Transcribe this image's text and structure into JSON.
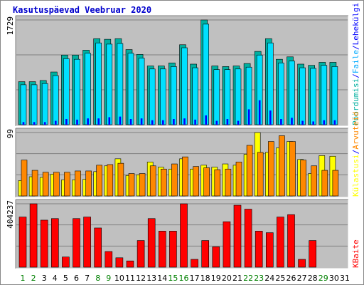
{
  "title": "Kasutuspäevad Veebruar 2020",
  "colors": {
    "hits": "#00b0a0",
    "files": "#00e0ff",
    "pages": "#0000ff",
    "visits": "#ffff00",
    "sites": "#ff8800",
    "kbytes": "#ff0000",
    "weekend": "#008000",
    "weekday": "#008000",
    "title": "#0000cc"
  },
  "right_labels": {
    "top": [
      {
        "text": "Pöördumisi",
        "color": "#00b0a0"
      },
      {
        "text": "/",
        "color": "#0000ff"
      },
      {
        "text": "Faile",
        "color": "#00aaff"
      },
      {
        "text": "/",
        "color": "#0000ff"
      },
      {
        "text": "Lehekülgi",
        "color": "#0000ff"
      }
    ],
    "mid": [
      {
        "text": "Külastusi",
        "color": "#ffff00"
      },
      {
        "text": "/",
        "color": "#0000ff"
      },
      {
        "text": "Arvuteid",
        "color": "#ff8800"
      }
    ],
    "bottom": [
      {
        "text": "KBaite",
        "color": "#ff0000"
      }
    ]
  },
  "chart_data": [
    {
      "type": "bar",
      "panel": "top",
      "ymax_label": "1729",
      "ylim": [
        0,
        1729
      ],
      "categories": [
        "1",
        "2",
        "3",
        "4",
        "5",
        "6",
        "7",
        "8",
        "9",
        "10",
        "11",
        "12",
        "13",
        "14",
        "15",
        "16",
        "17",
        "18",
        "19",
        "20",
        "21",
        "22",
        "23",
        "24",
        "25",
        "26",
        "27",
        "28",
        "29",
        "30",
        "31"
      ],
      "series": [
        {
          "name": "Pöördumisi",
          "values": [
            710,
            710,
            730,
            870,
            1150,
            1150,
            1230,
            1420,
            1410,
            1420,
            1240,
            1160,
            970,
            970,
            1020,
            1320,
            1000,
            1729,
            970,
            960,
            970,
            1010,
            1210,
            1420,
            1080,
            1120,
            1000,
            980,
            1030,
            1030,
            null
          ]
        },
        {
          "name": "Faile",
          "values": [
            660,
            660,
            680,
            810,
            1090,
            1080,
            1180,
            1350,
            1330,
            1340,
            1180,
            1100,
            920,
            920,
            960,
            1270,
            940,
            1660,
            910,
            910,
            920,
            950,
            1150,
            1350,
            1020,
            1050,
            940,
            930,
            980,
            960,
            null
          ]
        },
        {
          "name": "Lehekülgi",
          "values": [
            40,
            40,
            40,
            60,
            90,
            80,
            100,
            100,
            120,
            130,
            90,
            100,
            70,
            70,
            90,
            100,
            80,
            150,
            60,
            90,
            60,
            250,
            400,
            230,
            90,
            110,
            60,
            50,
            70,
            70,
            null
          ]
        }
      ]
    },
    {
      "type": "bar",
      "panel": "mid",
      "ymax_label": "99",
      "ylim": [
        0,
        99
      ],
      "categories": [
        "1",
        "2",
        "3",
        "4",
        "5",
        "6",
        "7",
        "8",
        "9",
        "10",
        "11",
        "12",
        "13",
        "14",
        "15",
        "16",
        "17",
        "18",
        "19",
        "20",
        "21",
        "22",
        "23",
        "24",
        "25",
        "26",
        "27",
        "28",
        "29",
        "30",
        "31"
      ],
      "series": [
        {
          "name": "Külastusi",
          "values": [
            24,
            30,
            29,
            34,
            25,
            25,
            26,
            38,
            47,
            58,
            32,
            33,
            53,
            45,
            42,
            58,
            42,
            48,
            45,
            50,
            48,
            65,
            99,
            68,
            75,
            85,
            57,
            35,
            63,
            62,
            null
          ]
        },
        {
          "name": "Arvuteid",
          "values": [
            56,
            40,
            37,
            37,
            37,
            39,
            39,
            48,
            49,
            51,
            35,
            35,
            47,
            42,
            50,
            61,
            46,
            44,
            41,
            42,
            53,
            79,
            68,
            85,
            94,
            85,
            56,
            47,
            40,
            40,
            null
          ]
        }
      ]
    },
    {
      "type": "bar",
      "panel": "bottom",
      "ymax_label": "404237",
      "ylim": [
        0,
        404237
      ],
      "categories": [
        "1",
        "2",
        "3",
        "4",
        "5",
        "6",
        "7",
        "8",
        "9",
        "10",
        "11",
        "12",
        "13",
        "14",
        "15",
        "16",
        "17",
        "18",
        "19",
        "20",
        "21",
        "22",
        "23",
        "24",
        "25",
        "26",
        "27",
        "28",
        "29",
        "30",
        "31"
      ],
      "series": [
        {
          "name": "KBaite",
          "values": [
            320000,
            404237,
            300000,
            310000,
            65000,
            310000,
            320000,
            250000,
            100000,
            60000,
            40000,
            170000,
            310000,
            230000,
            230000,
            404237,
            50000,
            170000,
            130000,
            290000,
            395000,
            370000,
            230000,
            220000,
            320000,
            335000,
            50000,
            170000,
            null,
            null,
            null
          ]
        }
      ]
    }
  ],
  "x_labels": [
    {
      "d": "1",
      "c": "#008000"
    },
    {
      "d": "2",
      "c": "#008000"
    },
    {
      "d": "3",
      "c": "#000000"
    },
    {
      "d": "4",
      "c": "#000000"
    },
    {
      "d": "5",
      "c": "#000000"
    },
    {
      "d": "6",
      "c": "#000000"
    },
    {
      "d": "7",
      "c": "#000000"
    },
    {
      "d": "8",
      "c": "#008000"
    },
    {
      "d": "9",
      "c": "#008000"
    },
    {
      "d": "10",
      "c": "#000000"
    },
    {
      "d": "11",
      "c": "#000000"
    },
    {
      "d": "12",
      "c": "#000000"
    },
    {
      "d": "13",
      "c": "#000000"
    },
    {
      "d": "14",
      "c": "#000000"
    },
    {
      "d": "15",
      "c": "#008000"
    },
    {
      "d": "16",
      "c": "#008000"
    },
    {
      "d": "17",
      "c": "#000000"
    },
    {
      "d": "18",
      "c": "#000000"
    },
    {
      "d": "19",
      "c": "#000000"
    },
    {
      "d": "20",
      "c": "#000000"
    },
    {
      "d": "21",
      "c": "#000000"
    },
    {
      "d": "22",
      "c": "#008000"
    },
    {
      "d": "23",
      "c": "#008000"
    },
    {
      "d": "24",
      "c": "#000000"
    },
    {
      "d": "25",
      "c": "#000000"
    },
    {
      "d": "26",
      "c": "#000000"
    },
    {
      "d": "27",
      "c": "#000000"
    },
    {
      "d": "28",
      "c": "#000000"
    },
    {
      "d": "29",
      "c": "#008000"
    },
    {
      "d": "30",
      "c": "#000000"
    },
    {
      "d": "31",
      "c": "#000000"
    }
  ]
}
